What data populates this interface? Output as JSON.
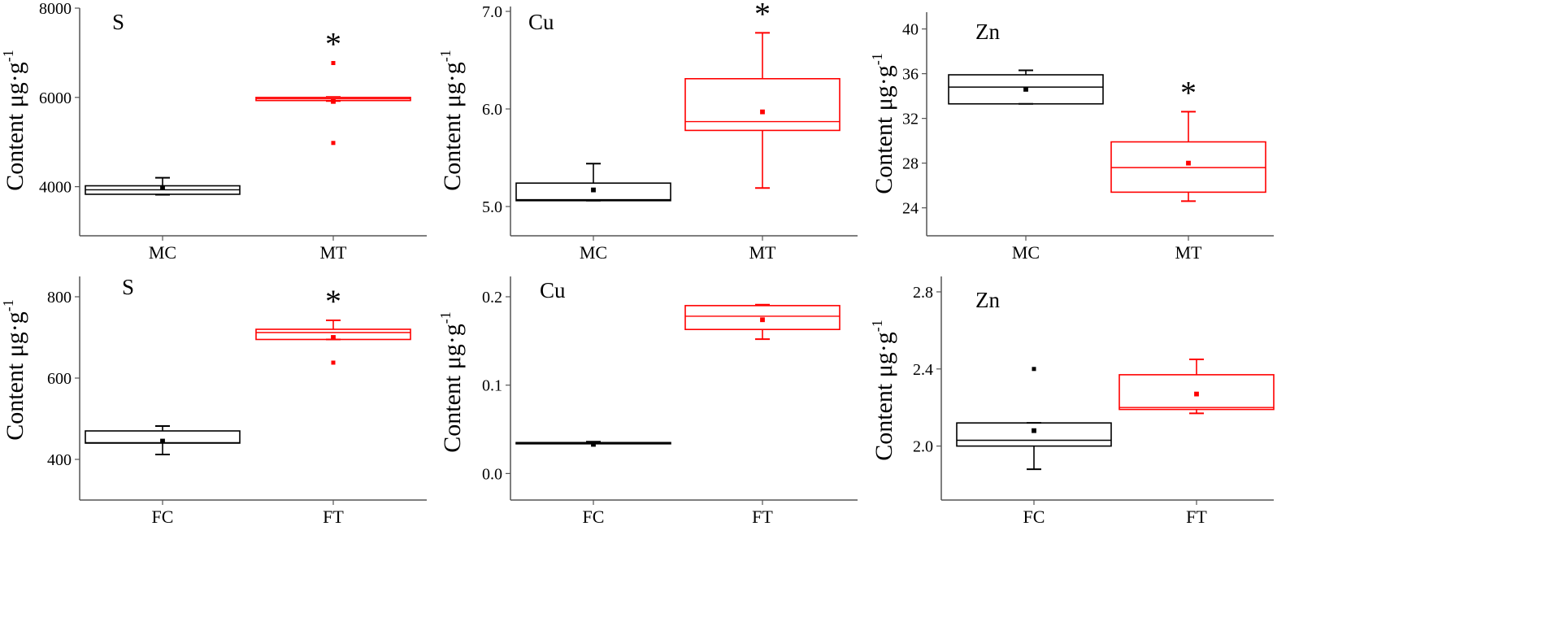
{
  "colors": {
    "control": "#000000",
    "treatment": "#ff0000"
  },
  "chart_data": [
    {
      "type": "box",
      "title": "S",
      "ylabel": "Content μg·g",
      "ylabel_superscript": "-1",
      "ylim": [
        2900,
        8000
      ],
      "yticks": [
        4000,
        6000,
        8000
      ],
      "ytick_labels": [
        "4000",
        "6000",
        "8000"
      ],
      "categories": [
        "MC",
        "MT"
      ],
      "boxes": [
        {
          "category": "MC",
          "whisker_low": 3820,
          "q1": 3830,
          "median": 3930,
          "q3": 4020,
          "whisker_high": 4200,
          "mean": 3980,
          "outliers": [],
          "star": ""
        },
        {
          "category": "MT",
          "whisker_low": 5920,
          "q1": 5930,
          "median": 5970,
          "q3": 6000,
          "whisker_high": 6010,
          "mean": 5910,
          "outliers": [
            6770,
            4980
          ],
          "star": "*"
        }
      ]
    },
    {
      "type": "box",
      "title": "Cu",
      "ylabel": "Content μg·g",
      "ylabel_superscript": "-1",
      "ylim": [
        4.7,
        7.05
      ],
      "yticks": [
        5.0,
        6.0,
        7.0
      ],
      "ytick_labels": [
        "5.0",
        "6.0",
        "7.0"
      ],
      "categories": [
        "MC",
        "MT"
      ],
      "boxes": [
        {
          "category": "MC",
          "whisker_low": 5.06,
          "q1": 5.06,
          "median": 5.07,
          "q3": 5.24,
          "whisker_high": 5.44,
          "mean": 5.17,
          "outliers": [],
          "star": ""
        },
        {
          "category": "MT",
          "whisker_low": 5.19,
          "q1": 5.78,
          "median": 5.87,
          "q3": 6.31,
          "whisker_high": 6.78,
          "mean": 5.97,
          "outliers": [],
          "star": "*"
        }
      ]
    },
    {
      "type": "box",
      "title": "Zn",
      "ylabel": "Content μg·g",
      "ylabel_superscript": "-1",
      "ylim": [
        21.5,
        41.5
      ],
      "yticks": [
        24,
        28,
        32,
        36,
        40
      ],
      "ytick_labels": [
        "24",
        "28",
        "32",
        "36",
        "40"
      ],
      "categories": [
        "MC",
        "MT"
      ],
      "boxes": [
        {
          "category": "MC",
          "whisker_low": 33.3,
          "q1": 33.3,
          "median": 34.8,
          "q3": 35.9,
          "whisker_high": 36.3,
          "mean": 34.6,
          "outliers": [],
          "star": ""
        },
        {
          "category": "MT",
          "whisker_low": 24.6,
          "q1": 25.4,
          "median": 27.6,
          "q3": 29.9,
          "whisker_high": 32.6,
          "mean": 28.0,
          "outliers": [],
          "star": "*"
        }
      ]
    },
    {
      "type": "box",
      "title": "S",
      "ylabel": "Content μg·g",
      "ylabel_superscript": "-1",
      "ylim": [
        300,
        850
      ],
      "yticks": [
        400,
        600,
        800
      ],
      "ytick_labels": [
        "400",
        "600",
        "800"
      ],
      "categories": [
        "FC",
        "FT"
      ],
      "boxes": [
        {
          "category": "FC",
          "whisker_low": 412,
          "q1": 440,
          "median": 441,
          "q3": 470,
          "whisker_high": 482,
          "mean": 445,
          "outliers": [],
          "star": ""
        },
        {
          "category": "FT",
          "whisker_low": 695,
          "q1": 695,
          "median": 712,
          "q3": 720,
          "whisker_high": 742,
          "mean": 700,
          "outliers": [
            638
          ],
          "star": "*"
        }
      ]
    },
    {
      "type": "box",
      "title": "Cu",
      "ylabel": "Content μg·g",
      "ylabel_superscript": "-1",
      "ylim": [
        -0.03,
        0.223
      ],
      "yticks": [
        0.0,
        0.1,
        0.2
      ],
      "ytick_labels": [
        "0.0",
        "0.1",
        "0.2"
      ],
      "categories": [
        "FC",
        "FT"
      ],
      "boxes": [
        {
          "category": "FC",
          "whisker_low": 0.034,
          "q1": 0.034,
          "median": 0.035,
          "q3": 0.035,
          "whisker_high": 0.036,
          "mean": 0.033,
          "outliers": [],
          "star": ""
        },
        {
          "category": "FT",
          "whisker_low": 0.152,
          "q1": 0.163,
          "median": 0.178,
          "q3": 0.19,
          "whisker_high": 0.191,
          "mean": 0.174,
          "outliers": [],
          "star": ""
        }
      ]
    },
    {
      "type": "box",
      "title": "Zn",
      "ylabel": "Content μg·g",
      "ylabel_superscript": "-1",
      "ylim": [
        1.72,
        2.88
      ],
      "yticks": [
        2.0,
        2.4,
        2.8
      ],
      "ytick_labels": [
        "2.0",
        "2.4",
        "2.8"
      ],
      "categories": [
        "FC",
        "FT"
      ],
      "boxes": [
        {
          "category": "FC",
          "whisker_low": 1.88,
          "q1": 2.0,
          "median": 2.03,
          "q3": 2.12,
          "whisker_high": 2.12,
          "mean": 2.08,
          "outliers": [
            2.4
          ],
          "star": ""
        },
        {
          "category": "FT",
          "whisker_low": 2.17,
          "q1": 2.19,
          "median": 2.2,
          "q3": 2.37,
          "whisker_high": 2.45,
          "mean": 2.27,
          "outliers": [],
          "star": ""
        }
      ]
    }
  ]
}
